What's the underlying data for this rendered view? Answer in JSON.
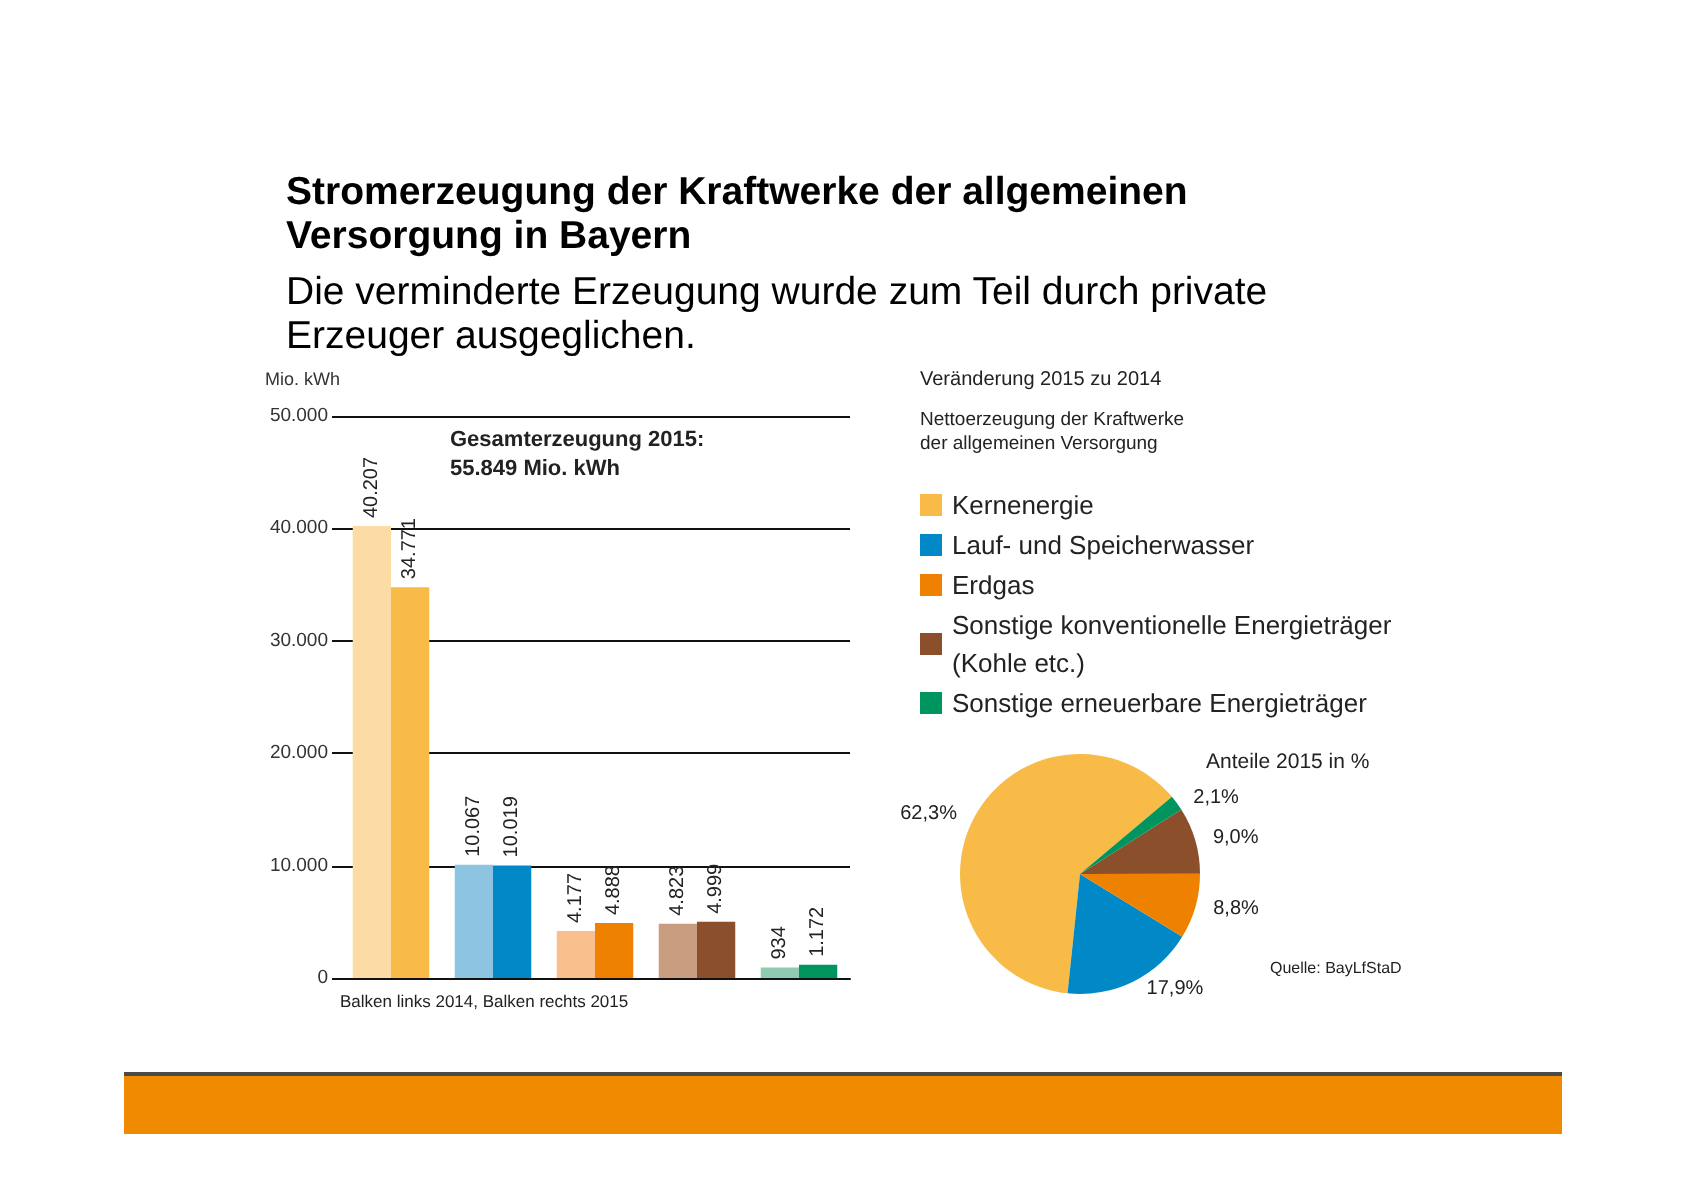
{
  "chart_data": [
    {
      "type": "bar",
      "title": "Stromerzeugung der Kraftwerke der allgemeinen Versorgung in Bayern",
      "subtitle": "Die verminderte Erzeugung wurde zum Teil durch private Erzeuger ausgeglichen.",
      "ylabel": "Mio. kWh",
      "categories": [
        null,
        null,
        null,
        null,
        null
      ],
      "series": [
        {
          "colors": [
            "#fddba4",
            "#8cc4e2",
            "#f9c08e",
            "#c89d80",
            "#8fcbb0"
          ],
          "values": [
            40207,
            10067,
            4177,
            4823,
            934
          ],
          "value_labels": [
            "40.207",
            "10.067",
            "4.177",
            "4.823",
            "934"
          ]
        },
        {
          "colors": [
            "#f8bb47",
            "#0089c6",
            "#ee8100",
            "#8b4f2b",
            "#00955e"
          ],
          "values": [
            34771,
            10019,
            4888,
            4999,
            1172
          ],
          "value_labels": [
            "34.771",
            "10.019",
            "4.888",
            "4.999",
            "1.172"
          ]
        }
      ],
      "ylim": [
        0,
        50000
      ],
      "yticks": [
        0,
        {
          "value": 10000,
          "label": "10.000"
        },
        {
          "value": 20000,
          "label": "20.000"
        },
        {
          "value": 30000,
          "label": "30.000"
        },
        {
          "value": 40000,
          "label": "40.000"
        },
        {
          "value": 50000,
          "label": "50.000"
        }
      ],
      "grid": "y",
      "annotations": [
        "Gesamterzeugung 2015: 55.849 Mio. kWh",
        "Balken links 2014, Balken rechts 2015"
      ]
    },
    {
      "type": "pie",
      "title": "Veränderung 2015 zu 2014",
      "subtitle": "Nettoerzeugung der Kraftwerke der allgemeinen Versorgung",
      "categories": [
        "Kernenergie",
        "Lauf- und Speicherwasser",
        "Erdgas",
        "Sonstige konventionelle Energieträger (Kohle etc.)",
        "Sonstige erneuerbare Energieträger"
      ],
      "values": [
        62.3,
        17.9,
        8.8,
        9.0,
        2.1
      ],
      "value_labels": [
        "62,3%",
        "17,9%",
        "8,8%",
        "9,0%",
        "2,1%"
      ],
      "colors": [
        "#f8bb47",
        "#0089c6",
        "#ee8100",
        "#8b4f2b",
        "#00955e"
      ],
      "legend": "top",
      "annotations": [
        "Anteile 2015 in %",
        "Quelle: BayLfStaD"
      ]
    }
  ]
}
